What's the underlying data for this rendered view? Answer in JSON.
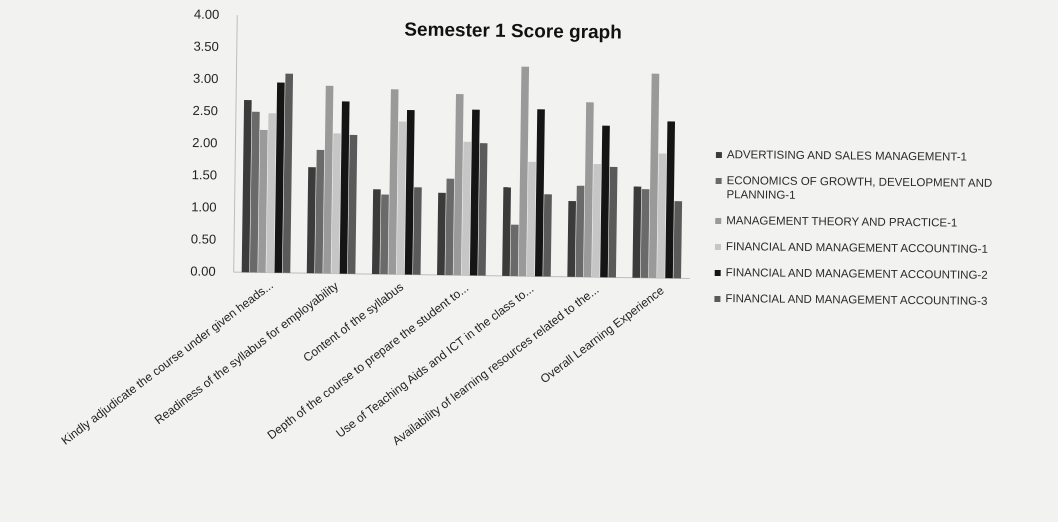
{
  "chart_data": {
    "type": "bar",
    "title": "Semester 1 Score graph",
    "xlabel": "",
    "ylabel": "",
    "ylim": [
      0,
      4
    ],
    "yticks": [
      "0.00",
      "0.50",
      "1.00",
      "1.50",
      "2.00",
      "2.50",
      "3.00",
      "3.50",
      "4.00"
    ],
    "grid": false,
    "legend_position": "right",
    "categories": [
      "Kindly adjudicate the course under given heads...",
      "Readiness of the syllabus for employability",
      "Content of the syllabus",
      "Depth of the course to prepare the student to...",
      "Use of Teaching Aids and ICT in the class to...",
      "Availability of learning resources related to the...",
      "Overall Learning Experience"
    ],
    "series": [
      {
        "name": "ADVERTISING AND SALES MANAGEMENT-1",
        "color": "#3b3b3b",
        "values": [
          2.68,
          1.65,
          1.32,
          1.28,
          1.38,
          1.18,
          1.42
        ]
      },
      {
        "name": "ECONOMICS OF GROWTH, DEVELOPMENT AND PLANNING-1",
        "color": "#6a6a6a",
        "values": [
          2.5,
          1.92,
          1.24,
          1.5,
          0.8,
          1.42,
          1.38
        ]
      },
      {
        "name": "MANAGEMENT THEORY AND PRACTICE-1",
        "color": "#9a9a9a",
        "values": [
          2.22,
          2.92,
          2.88,
          2.82,
          3.26,
          2.72,
          3.18
        ]
      },
      {
        "name": "FINANCIAL AND MANAGEMENT ACCOUNTING-1",
        "color": "#c6c6c6",
        "values": [
          2.48,
          2.18,
          2.38,
          2.08,
          1.78,
          1.76,
          1.94
        ]
      },
      {
        "name": "FINANCIAL AND MANAGEMENT ACCOUNTING-2",
        "color": "#151515",
        "values": [
          2.96,
          2.68,
          2.56,
          2.58,
          2.6,
          2.36,
          2.44
        ]
      },
      {
        "name": "FINANCIAL AND MANAGEMENT ACCOUNTING-3",
        "color": "#5a5a5a",
        "values": [
          3.1,
          2.16,
          1.36,
          2.06,
          1.28,
          1.72,
          1.2
        ]
      }
    ]
  }
}
